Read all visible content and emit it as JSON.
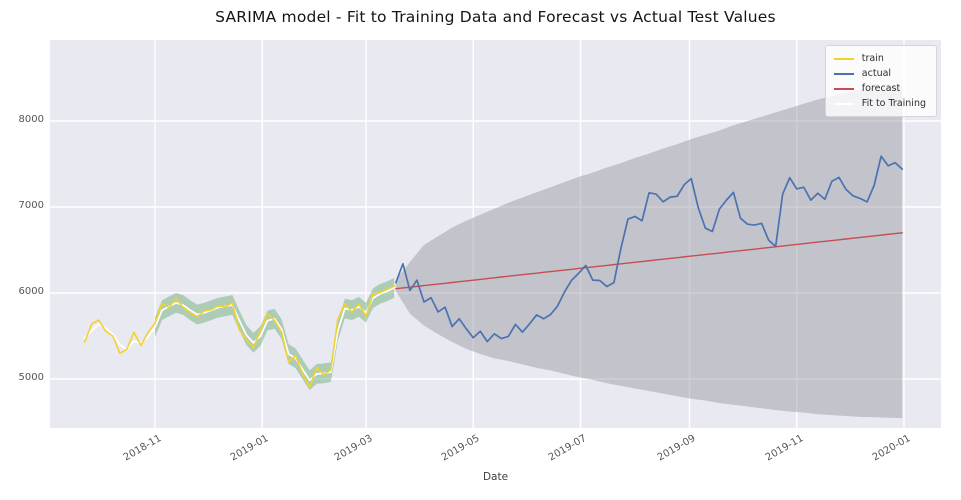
{
  "chart_data": {
    "type": "line",
    "title": "SARIMA model - Fit to Training Data and Forecast vs Actual Test Values",
    "xlabel": "Date",
    "ylabel": "",
    "grid": true,
    "background_color": "#e9e9f1",
    "gridline_color": "#ffffff",
    "ylim": [
      4430,
      8940
    ],
    "xlim": [
      "2018-09-03",
      "2020-01-22"
    ],
    "y_ticks": [
      5000,
      6000,
      7000,
      8000
    ],
    "x_ticks": [
      {
        "label": "2018-11",
        "date": "2018-11-01"
      },
      {
        "label": "2019-01",
        "date": "2019-01-01"
      },
      {
        "label": "2019-03",
        "date": "2019-03-01"
      },
      {
        "label": "2019-05",
        "date": "2019-05-01"
      },
      {
        "label": "2019-07",
        "date": "2019-07-01"
      },
      {
        "label": "2019-09",
        "date": "2019-09-01"
      },
      {
        "label": "2019-11",
        "date": "2019-11-01"
      },
      {
        "label": "2020-01",
        "date": "2020-01-01"
      }
    ],
    "legend": [
      {
        "label": "train",
        "color": "#f2d22e"
      },
      {
        "label": "actual",
        "color": "#4c72b0"
      },
      {
        "label": "forecast",
        "color": "#c44e52"
      },
      {
        "label": "Fit to Training",
        "color": "#ffffff"
      }
    ],
    "bands": [
      {
        "name": "forecast-confidence",
        "color": "#9e9ea8",
        "opacity": 0.5,
        "start": "2019-03-18",
        "step_days": 8,
        "upper": [
          6150,
          6360,
          6560,
          6660,
          6760,
          6840,
          6910,
          6980,
          7050,
          7110,
          7170,
          7230,
          7290,
          7350,
          7400,
          7460,
          7510,
          7570,
          7620,
          7680,
          7730,
          7790,
          7840,
          7890,
          7950,
          8000,
          8050,
          8100,
          8150,
          8200,
          8250,
          8290,
          8330,
          8360,
          8390,
          8400,
          8400
        ],
        "lower": [
          6020,
          5760,
          5620,
          5520,
          5430,
          5350,
          5290,
          5240,
          5210,
          5170,
          5130,
          5100,
          5060,
          5020,
          4990,
          4950,
          4920,
          4890,
          4860,
          4830,
          4800,
          4770,
          4750,
          4720,
          4700,
          4680,
          4660,
          4640,
          4620,
          4610,
          4590,
          4580,
          4570,
          4560,
          4555,
          4550,
          4545
        ]
      },
      {
        "name": "fit-confidence",
        "color": "#6faf7c",
        "opacity": 0.5,
        "start": "2018-11-01",
        "step_days": 4,
        "upper": [
          5715,
          5915,
          5960,
          6000,
          5975,
          5915,
          5865,
          5885,
          5915,
          5945,
          5960,
          5975,
          5795,
          5625,
          5535,
          5615,
          5795,
          5815,
          5695,
          5405,
          5355,
          5225,
          5100,
          5175,
          5180,
          5195,
          5675,
          5935,
          5915,
          5955,
          5885,
          6055,
          6105,
          6135,
          6175
        ],
        "lower": [
          5485,
          5685,
          5730,
          5770,
          5745,
          5685,
          5635,
          5655,
          5685,
          5715,
          5730,
          5745,
          5565,
          5395,
          5305,
          5385,
          5565,
          5585,
          5465,
          5175,
          5125,
          4995,
          4870,
          4945,
          4950,
          4965,
          5445,
          5705,
          5685,
          5725,
          5655,
          5825,
          5875,
          5905,
          5945
        ]
      }
    ],
    "series": [
      {
        "name": "Fit to Training",
        "color": "#ffffff",
        "start": "2018-09-22",
        "step_days": 4,
        "values": [
          5480,
          5560,
          5640,
          5590,
          5520,
          5400,
          5340,
          5440,
          5420,
          5490,
          5600,
          5800,
          5845,
          5885,
          5860,
          5800,
          5750,
          5770,
          5800,
          5830,
          5845,
          5860,
          5680,
          5510,
          5420,
          5500,
          5680,
          5700,
          5580,
          5290,
          5240,
          5110,
          4985,
          5060,
          5065,
          5080,
          5560,
          5820,
          5800,
          5840,
          5770,
          5940,
          5990,
          6020,
          6060
        ]
      },
      {
        "name": "train",
        "color": "#f2d22e",
        "start": "2018-09-22",
        "step_days": 4,
        "values": [
          5430,
          5640,
          5685,
          5555,
          5500,
          5300,
          5345,
          5545,
          5390,
          5540,
          5650,
          5880,
          5830,
          5940,
          5830,
          5770,
          5725,
          5790,
          5805,
          5850,
          5840,
          5885,
          5570,
          5455,
          5365,
          5565,
          5755,
          5680,
          5545,
          5200,
          5270,
          5060,
          4905,
          5135,
          5050,
          5105,
          5695,
          5875,
          5780,
          5870,
          5730,
          5985,
          6005,
          6040,
          6080
        ]
      },
      {
        "name": "forecast",
        "color": "#c44e52",
        "start": "2019-03-18",
        "step_days": 4,
        "values": [
          6050,
          6059,
          6068,
          6077,
          6086,
          6095,
          6104,
          6113,
          6122,
          6131,
          6140,
          6149,
          6158,
          6168,
          6177,
          6186,
          6195,
          6204,
          6213,
          6222,
          6231,
          6240,
          6249,
          6258,
          6267,
          6276,
          6285,
          6294,
          6303,
          6312,
          6321,
          6330,
          6339,
          6348,
          6357,
          6366,
          6375,
          6384,
          6393,
          6402,
          6411,
          6420,
          6429,
          6438,
          6447,
          6456,
          6465,
          6474,
          6483,
          6492,
          6501,
          6510,
          6519,
          6528,
          6537,
          6546,
          6556,
          6565,
          6574,
          6583,
          6592,
          6601,
          6610,
          6619,
          6628,
          6637,
          6646,
          6655,
          6664,
          6673,
          6682,
          6691,
          6700
        ]
      },
      {
        "name": "actual",
        "color": "#4c72b0",
        "start": "2019-03-18",
        "step_days": 4,
        "values": [
          6120,
          6340,
          6030,
          6150,
          5895,
          5945,
          5780,
          5835,
          5610,
          5700,
          5585,
          5480,
          5555,
          5435,
          5525,
          5470,
          5495,
          5635,
          5545,
          5640,
          5745,
          5700,
          5750,
          5850,
          6015,
          6150,
          6230,
          6320,
          6150,
          6145,
          6075,
          6120,
          6520,
          6860,
          6890,
          6840,
          7165,
          7150,
          7060,
          7115,
          7125,
          7260,
          7330,
          6990,
          6755,
          6715,
          6975,
          7080,
          7170,
          6870,
          6800,
          6790,
          6810,
          6615,
          6540,
          7150,
          7340,
          7210,
          7230,
          7080,
          7160,
          7090,
          7300,
          7345,
          7205,
          7130,
          7100,
          7060,
          7250,
          7590,
          7480,
          7515,
          7440
        ]
      }
    ]
  }
}
